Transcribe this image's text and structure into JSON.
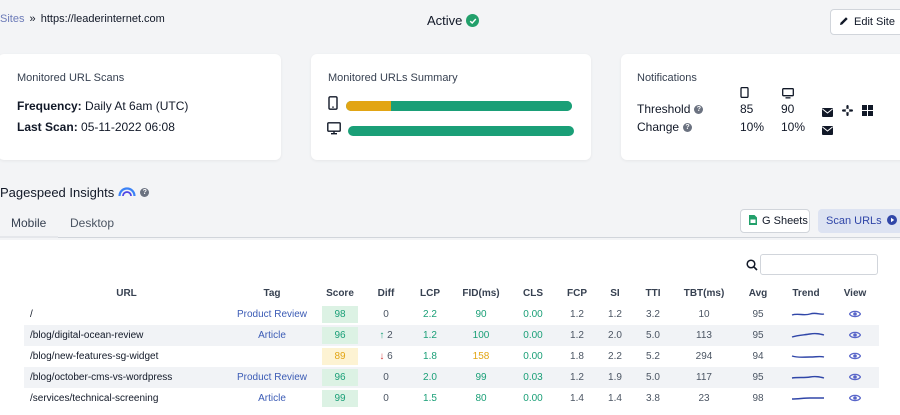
{
  "breadcrumb": {
    "link": "Sites",
    "separator": "»",
    "current": "https://leaderinternet.com"
  },
  "status": {
    "label": "Active",
    "color": "#22a06b"
  },
  "edit_button": {
    "label": "Edit Site"
  },
  "scans_card": {
    "title": "Monitored URL Scans",
    "frequency_label": "Frequency:",
    "frequency_value": "Daily At 6am (UTC)",
    "last_scan_label": "Last Scan:",
    "last_scan_value": "05-11-2022 06:08"
  },
  "summary_card": {
    "title": "Monitored URLs Summary",
    "mobile_bar": {
      "icon": "mobile-icon",
      "segments": [
        {
          "fraction": 0.2,
          "color": "#e2a514"
        },
        {
          "fraction": 0.8,
          "color": "#1a9f77"
        }
      ]
    },
    "desktop_bar": {
      "icon": "desktop-icon",
      "segments": [
        {
          "fraction": 1.0,
          "color": "#1a9f77"
        }
      ]
    }
  },
  "notifications_card": {
    "title": "Notifications",
    "threshold_label": "Threshold",
    "change_label": "Change",
    "threshold_mobile": "85",
    "threshold_desktop": "90",
    "change_mobile": "10%",
    "change_desktop": "10%"
  },
  "insights": {
    "title": "Pagespeed Insights"
  },
  "tabs": [
    {
      "label": "Mobile"
    },
    {
      "label": "Desktop"
    }
  ],
  "actions": {
    "gsheets_label": "G Sheets",
    "scan_label": "Scan URLs"
  },
  "search": {
    "placeholder": "",
    "value": ""
  },
  "table": {
    "headers": {
      "url": "URL",
      "tag": "Tag",
      "score": "Score",
      "diff": "Diff",
      "lcp": "LCP",
      "fid": "FID(ms)",
      "cls": "CLS",
      "fcp": "FCP",
      "si": "SI",
      "tti": "TTI",
      "tbt": "TBT(ms)",
      "avg": "Avg",
      "trend": "Trend",
      "view": "View"
    },
    "rows": [
      {
        "url": "/",
        "tag": "Product Review",
        "score": "98",
        "diff": "0",
        "lcp": "2.2",
        "fid": "90",
        "cls": "0.00",
        "fcp": "1.2",
        "si": "1.2",
        "tti": "3.2",
        "tbt": "10",
        "avg": "95"
      },
      {
        "url": "/blog/digital-ocean-review",
        "tag": "Article",
        "score": "96",
        "diff": "2",
        "lcp": "1.2",
        "fid": "100",
        "cls": "0.00",
        "fcp": "1.2",
        "si": "2.0",
        "tti": "5.0",
        "tbt": "113",
        "avg": "95"
      },
      {
        "url": "/blog/new-features-sg-widget",
        "tag": "",
        "score": "89",
        "diff": "6",
        "lcp": "1.8",
        "fid": "158",
        "cls": "0.00",
        "fcp": "1.8",
        "si": "2.2",
        "tti": "5.2",
        "tbt": "294",
        "avg": "94"
      },
      {
        "url": "/blog/october-cms-vs-wordpress",
        "tag": "Product Review",
        "score": "96",
        "diff": "0",
        "lcp": "2.0",
        "fid": "99",
        "cls": "0.03",
        "fcp": "1.2",
        "si": "1.9",
        "tti": "5.0",
        "tbt": "117",
        "avg": "95"
      },
      {
        "url": "/services/technical-screening",
        "tag": "Article",
        "score": "99",
        "diff": "0",
        "lcp": "1.5",
        "fid": "80",
        "cls": "0.00",
        "fcp": "1.4",
        "si": "1.4",
        "tti": "3.8",
        "tbt": "23",
        "avg": "98"
      }
    ]
  },
  "colors": {
    "good": "#1a9f77",
    "warn": "#e2a514",
    "bad": "#d23a3a",
    "accent": "#3046a8"
  }
}
